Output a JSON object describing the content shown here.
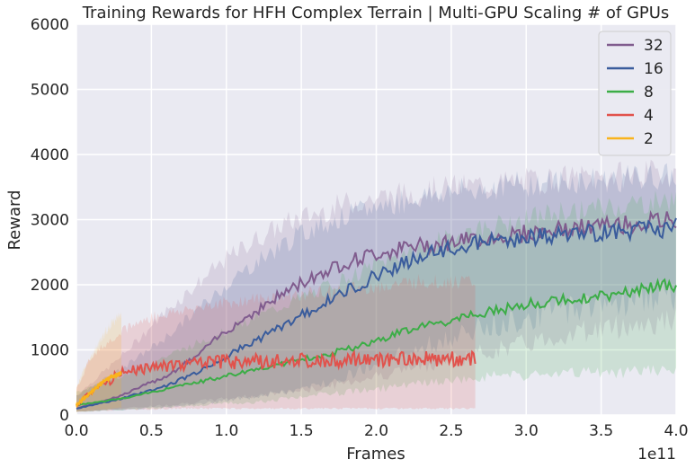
{
  "chart_data": {
    "type": "line",
    "title": "Training Rewards for HFH Complex Terrain | Multi-GPU Scaling # of GPUs",
    "xlabel": "Frames",
    "ylabel": "Reward",
    "x_scale_label": "1e11",
    "x_ticks": [
      "0.0",
      "0.5",
      "1.0",
      "1.5",
      "2.0",
      "2.5",
      "3.0",
      "3.5",
      "4.0"
    ],
    "y_ticks": [
      "0",
      "1000",
      "2000",
      "3000",
      "4000",
      "5000",
      "6000"
    ],
    "xlim": [
      0,
      4.0
    ],
    "ylim": [
      0,
      6000
    ],
    "grid": true,
    "legend_position": "top-right",
    "background": "#eaeaf2",
    "series": [
      {
        "name": "32",
        "color": "#805c8e",
        "x": [
          0,
          0.3,
          0.6,
          0.8,
          1.0,
          1.2,
          1.4,
          1.6,
          1.8,
          2.0,
          2.2,
          2.4,
          2.6,
          2.8,
          3.0,
          3.2,
          3.4,
          3.6,
          3.8,
          4.0
        ],
        "y": [
          100,
          300,
          600,
          900,
          1300,
          1600,
          1900,
          2150,
          2350,
          2480,
          2570,
          2630,
          2680,
          2740,
          2790,
          2840,
          2880,
          2920,
          2950,
          3000
        ],
        "upper": [
          300,
          900,
          1600,
          2000,
          2400,
          2700,
          2950,
          3100,
          3250,
          3330,
          3400,
          3470,
          3510,
          3560,
          3590,
          3620,
          3650,
          3680,
          3700,
          3720
        ],
        "lower": [
          50,
          100,
          150,
          200,
          250,
          300,
          350,
          400,
          500,
          600,
          700,
          800,
          900,
          1000,
          1100,
          1200,
          1300,
          1350,
          1400,
          1450
        ]
      },
      {
        "name": "16",
        "color": "#3a5c9c",
        "x": [
          0,
          0.3,
          0.6,
          0.8,
          1.0,
          1.2,
          1.4,
          1.6,
          1.8,
          2.0,
          2.2,
          2.4,
          2.6,
          2.8,
          3.0,
          3.2,
          3.4,
          3.6,
          3.8,
          4.0
        ],
        "y": [
          100,
          250,
          450,
          650,
          900,
          1150,
          1400,
          1650,
          1900,
          2150,
          2350,
          2500,
          2600,
          2680,
          2720,
          2760,
          2790,
          2820,
          2850,
          2880
        ],
        "upper": [
          300,
          700,
          1200,
          1600,
          2000,
          2350,
          2650,
          2900,
          3050,
          3200,
          3300,
          3400,
          3450,
          3500,
          3550,
          3580,
          3600,
          3620,
          3640,
          3660
        ],
        "lower": [
          50,
          80,
          120,
          160,
          220,
          280,
          350,
          450,
          600,
          800,
          950,
          1100,
          1250,
          1400,
          1500,
          1600,
          1700,
          1750,
          1800,
          1850
        ]
      },
      {
        "name": "8",
        "color": "#3cad47",
        "x": [
          0,
          0.3,
          0.6,
          0.8,
          1.0,
          1.2,
          1.4,
          1.6,
          1.8,
          2.0,
          2.2,
          2.4,
          2.6,
          2.8,
          3.0,
          3.2,
          3.4,
          3.6,
          3.8,
          4.0
        ],
        "y": [
          150,
          250,
          400,
          500,
          600,
          700,
          800,
          900,
          1000,
          1150,
          1300,
          1400,
          1500,
          1600,
          1700,
          1750,
          1800,
          1850,
          1950,
          2000
        ],
        "upper": [
          350,
          600,
          900,
          1100,
          1300,
          1500,
          1700,
          1900,
          2100,
          2300,
          2500,
          2650,
          2800,
          2900,
          3000,
          3100,
          3150,
          3200,
          3250,
          3300
        ],
        "lower": [
          50,
          80,
          120,
          150,
          180,
          200,
          250,
          300,
          350,
          400,
          450,
          500,
          550,
          600,
          600,
          620,
          650,
          650,
          680,
          700
        ]
      },
      {
        "name": "4",
        "color": "#e1524c",
        "x": [
          0,
          0.1,
          0.2,
          0.3,
          0.5,
          0.7,
          0.9,
          1.1,
          1.3,
          1.5,
          1.7,
          1.9,
          2.1,
          2.3,
          2.5,
          2.66
        ],
        "y": [
          150,
          350,
          500,
          650,
          750,
          780,
          800,
          820,
          830,
          840,
          850,
          850,
          850,
          860,
          860,
          850
        ],
        "upper": [
          400,
          900,
          1100,
          1300,
          1500,
          1600,
          1700,
          1750,
          1800,
          1850,
          1900,
          1950,
          2000,
          2050,
          2050,
          2050
        ],
        "lower": [
          50,
          60,
          70,
          80,
          90,
          100,
          100,
          100,
          100,
          100,
          100,
          100,
          100,
          100,
          100,
          100
        ]
      },
      {
        "name": "2",
        "color": "#f9b31c",
        "x": [
          0,
          0.05,
          0.1,
          0.15,
          0.2,
          0.25,
          0.3
        ],
        "y": [
          150,
          250,
          350,
          450,
          550,
          600,
          650
        ],
        "upper": [
          400,
          700,
          900,
          1100,
          1300,
          1450,
          1550
        ],
        "lower": [
          50,
          60,
          70,
          80,
          90,
          100,
          110
        ]
      }
    ]
  }
}
